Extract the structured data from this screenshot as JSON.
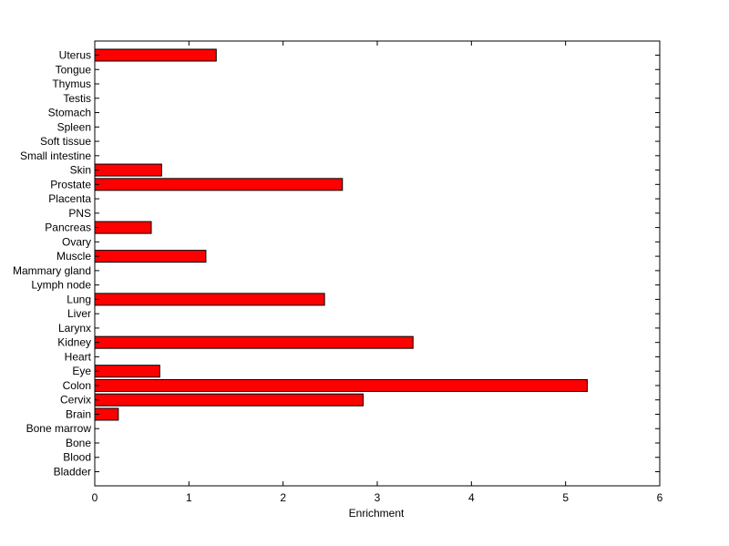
{
  "chart_data": {
    "type": "bar",
    "orientation": "horizontal",
    "title": "",
    "xlabel": "Enrichment",
    "ylabel": "",
    "xlim": [
      0,
      6
    ],
    "xticks": [
      0,
      1,
      2,
      3,
      4,
      5,
      6
    ],
    "grid": false,
    "bar_color": "#ff0000",
    "bar_edge_color": "#000000",
    "categories": [
      "Bladder",
      "Blood",
      "Bone",
      "Bone marrow",
      "Brain",
      "Cervix",
      "Colon",
      "Eye",
      "Heart",
      "Kidney",
      "Larynx",
      "Liver",
      "Lung",
      "Lymph node",
      "Mammary gland",
      "Muscle",
      "Ovary",
      "Pancreas",
      "PNS",
      "Placenta",
      "Prostate",
      "Skin",
      "Small intestine",
      "Soft tissue",
      "Spleen",
      "Stomach",
      "Testis",
      "Thymus",
      "Tongue",
      "Uterus"
    ],
    "values": [
      0,
      0,
      0,
      0,
      0.25,
      2.85,
      5.23,
      0.69,
      0,
      3.38,
      0,
      0,
      2.44,
      0,
      0,
      1.18,
      0,
      0.6,
      0,
      0,
      2.63,
      0.71,
      0,
      0,
      0,
      0,
      0,
      0,
      0,
      1.29
    ]
  }
}
